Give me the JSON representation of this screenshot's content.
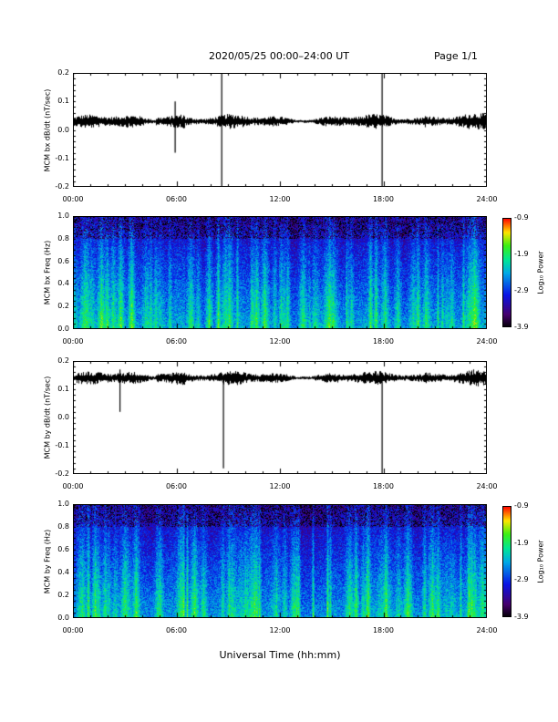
{
  "header": {
    "title": "2020/05/25  00:00–24:00 UT",
    "page": "Page 1/1"
  },
  "xlabel": "Universal Time (hh:mm)",
  "time_ticks": [
    "00:00",
    "06:00",
    "12:00",
    "18:00",
    "24:00"
  ],
  "colorbar": {
    "label": "Log₁₀ Power",
    "ticks": [
      "-0.9",
      "-1.9",
      "-2.9",
      "-3.9"
    ],
    "range": [
      -3.9,
      -0.9
    ]
  },
  "chart_data": [
    {
      "type": "line",
      "ylabel": "MCM bx dB/dt (nT/sec)",
      "x_range": [
        "00:00",
        "24:00"
      ],
      "ylim": [
        -0.2,
        0.2
      ],
      "yticks": [
        "0.2",
        "0.1",
        "0.0",
        "-0.1",
        "-0.2"
      ],
      "baseline": 0.03,
      "spikes": [
        {
          "t": "08:36",
          "min": -0.2,
          "max": 0.2
        },
        {
          "t": "17:54",
          "min": -0.2,
          "max": 0.2
        },
        {
          "t": "05:54",
          "min": -0.08,
          "max": 0.1
        }
      ]
    },
    {
      "type": "heatmap",
      "ylabel": "MCM bx Freq (Hz)",
      "x_range": [
        "00:00",
        "24:00"
      ],
      "ylim": [
        0.0,
        1.0
      ],
      "yticks": [
        "1.0",
        "0.8",
        "0.6",
        "0.4",
        "0.2",
        "0.0"
      ],
      "zlim": [
        -3.9,
        -0.9
      ]
    },
    {
      "type": "line",
      "ylabel": "MCM by dB/dt (nT/sec)",
      "x_range": [
        "00:00",
        "24:00"
      ],
      "ylim": [
        -0.2,
        0.2
      ],
      "yticks": [
        "0.2",
        "0.1",
        "0.0",
        "-0.1",
        "-0.2"
      ],
      "baseline": 0.14,
      "spikes": [
        {
          "t": "08:42",
          "min": -0.18,
          "max": 0.15
        },
        {
          "t": "17:54",
          "min": -0.2,
          "max": 0.15
        },
        {
          "t": "02:42",
          "min": 0.02,
          "max": 0.17
        }
      ]
    },
    {
      "type": "heatmap",
      "ylabel": "MCM by Freq (Hz)",
      "x_range": [
        "00:00",
        "24:00"
      ],
      "ylim": [
        0.0,
        1.0
      ],
      "yticks": [
        "1.0",
        "0.8",
        "0.6",
        "0.4",
        "0.2",
        "0.0"
      ],
      "zlim": [
        -3.9,
        -0.9
      ]
    }
  ]
}
